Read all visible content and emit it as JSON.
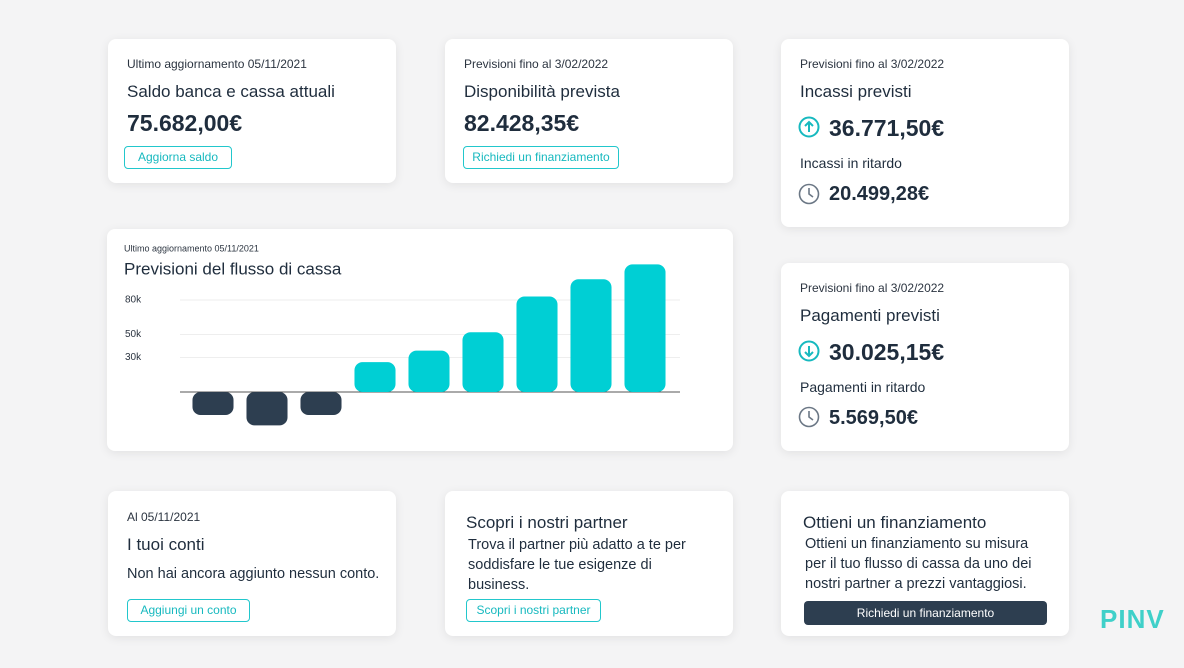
{
  "balance": {
    "note": "Ultimo aggiornamento 05/11/2021",
    "title": "Saldo banca e cassa attuali",
    "amount": "75.682,00€",
    "button": "Aggiorna saldo"
  },
  "availability": {
    "note": "Previsioni fino al 3/02/2022",
    "title": "Disponibilità prevista",
    "amount": "82.428,35€",
    "button": "Richiedi un finanziamento"
  },
  "incoming": {
    "note": "Previsioni fino al 3/02/2022",
    "title": "Incassi previsti",
    "amount": "36.771,50€",
    "late_title": "Incassi in ritardo",
    "late_amount": "20.499,28€"
  },
  "payments": {
    "note": "Previsioni fino al 3/02/2022",
    "title": "Pagamenti previsti",
    "amount": "30.025,15€",
    "late_title": "Pagamenti in ritardo",
    "late_amount": "5.569,50€"
  },
  "chart_data": {
    "type": "bar",
    "note": "Ultimo aggiornamento 05/11/2021",
    "title": "Previsioni del flusso di cassa",
    "categories": [
      null,
      null,
      null,
      null,
      null,
      null,
      null,
      null,
      null
    ],
    "values": [
      -20000,
      -29000,
      -20000,
      26000,
      36000,
      52000,
      83000,
      98000,
      111000
    ],
    "color": "#00cfd4",
    "negative_color": "#2d3e50",
    "ylim": [
      -30000,
      115000
    ],
    "yticks": [
      {
        "value": 30000,
        "label": "30k"
      },
      {
        "value": 50000,
        "label": "50k"
      },
      {
        "value": 80000,
        "label": "80k"
      }
    ],
    "grid": true
  },
  "accounts": {
    "note": "Al 05/11/2021",
    "title": "I tuoi conti",
    "text": "Non hai ancora aggiunto nessun conto.",
    "button": "Aggiungi un conto"
  },
  "partners": {
    "title": "Scopri i nostri partner",
    "text": "Trova il partner più adatto a te per soddisfare le tue esigenze di business.",
    "button": "Scopri i nostri partner"
  },
  "financing": {
    "title": "Ottieni un finanziamento",
    "text": "Ottieni un finanziamento su misura per il tuo flusso di cassa da uno dei nostri partner a prezzi vantaggiosi.",
    "button": "Richiedi un finanziamento"
  },
  "brand": "PINV"
}
